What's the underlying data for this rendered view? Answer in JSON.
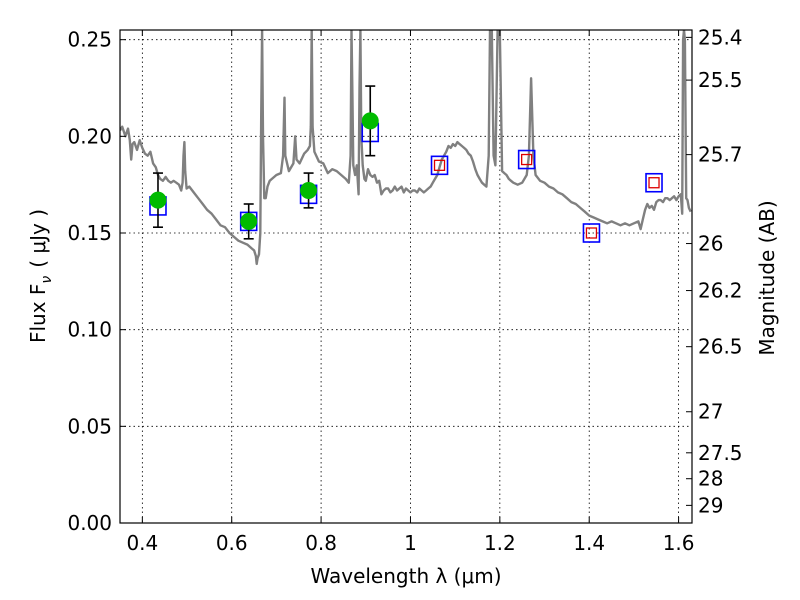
{
  "chart_data": {
    "type": "scatter",
    "xlabel": "Wavelength  λ (μm)",
    "ylabel": "Flux  F",
    "ylabel_sub": "ν",
    "ylabel_unit": "( μJy )",
    "y2label": "Magnitude (AB)",
    "xlim": [
      0.35,
      1.63
    ],
    "ylim": [
      0.0,
      0.255
    ],
    "grid": true,
    "x_ticks": [
      {
        "value": 0.4,
        "label": "0.4"
      },
      {
        "value": 0.6,
        "label": "0.6"
      },
      {
        "value": 0.8,
        "label": "0.8"
      },
      {
        "value": 1.0,
        "label": "1"
      },
      {
        "value": 1.2,
        "label": "1.2"
      },
      {
        "value": 1.4,
        "label": "1.4"
      },
      {
        "value": 1.6,
        "label": "1.6"
      }
    ],
    "y_ticks": [
      {
        "value": 0.0,
        "label": "0.00"
      },
      {
        "value": 0.05,
        "label": "0.05"
      },
      {
        "value": 0.1,
        "label": "0.10"
      },
      {
        "value": 0.15,
        "label": "0.15"
      },
      {
        "value": 0.2,
        "label": "0.20"
      },
      {
        "value": 0.25,
        "label": "0.25"
      }
    ],
    "mag_ticks": [
      "25.4",
      "25.5",
      "25.7",
      "26",
      "26.2",
      "26.5",
      "27",
      "27.5",
      "28",
      "29"
    ],
    "model_spectrum": {
      "color": "#808080",
      "points": [
        [
          0.35,
          0.203
        ],
        [
          0.355,
          0.205
        ],
        [
          0.362,
          0.2
        ],
        [
          0.368,
          0.204
        ],
        [
          0.372,
          0.198
        ],
        [
          0.375,
          0.188
        ],
        [
          0.378,
          0.196
        ],
        [
          0.382,
          0.197
        ],
        [
          0.388,
          0.193
        ],
        [
          0.394,
          0.198
        ],
        [
          0.4,
          0.194
        ],
        [
          0.406,
          0.191
        ],
        [
          0.412,
          0.19
        ],
        [
          0.418,
          0.192
        ],
        [
          0.424,
          0.186
        ],
        [
          0.43,
          0.184
        ],
        [
          0.435,
          0.18
        ],
        [
          0.44,
          0.178
        ],
        [
          0.446,
          0.177
        ],
        [
          0.452,
          0.179
        ],
        [
          0.458,
          0.177
        ],
        [
          0.464,
          0.176
        ],
        [
          0.47,
          0.177
        ],
        [
          0.476,
          0.176
        ],
        [
          0.482,
          0.175
        ],
        [
          0.487,
          0.172
        ],
        [
          0.49,
          0.176
        ],
        [
          0.492,
          0.19
        ],
        [
          0.494,
          0.197
        ],
        [
          0.496,
          0.182
        ],
        [
          0.499,
          0.173
        ],
        [
          0.505,
          0.174
        ],
        [
          0.515,
          0.171
        ],
        [
          0.525,
          0.168
        ],
        [
          0.535,
          0.165
        ],
        [
          0.545,
          0.162
        ],
        [
          0.555,
          0.16
        ],
        [
          0.565,
          0.157
        ],
        [
          0.575,
          0.154
        ],
        [
          0.585,
          0.153
        ],
        [
          0.595,
          0.15
        ],
        [
          0.605,
          0.148
        ],
        [
          0.615,
          0.146
        ],
        [
          0.625,
          0.145
        ],
        [
          0.635,
          0.144
        ],
        [
          0.645,
          0.142
        ],
        [
          0.65,
          0.141
        ],
        [
          0.654,
          0.138
        ],
        [
          0.656,
          0.134
        ],
        [
          0.658,
          0.137
        ],
        [
          0.661,
          0.139
        ],
        [
          0.664,
          0.15
        ],
        [
          0.666,
          0.21
        ],
        [
          0.668,
          0.255
        ],
        [
          0.67,
          0.2
        ],
        [
          0.673,
          0.168
        ],
        [
          0.676,
          0.168
        ],
        [
          0.68,
          0.174
        ],
        [
          0.685,
          0.177
        ],
        [
          0.69,
          0.178
        ],
        [
          0.7,
          0.18
        ],
        [
          0.71,
          0.181
        ],
        [
          0.715,
          0.19
        ],
        [
          0.718,
          0.22
        ],
        [
          0.72,
          0.19
        ],
        [
          0.728,
          0.182
        ],
        [
          0.738,
          0.186
        ],
        [
          0.742,
          0.2
        ],
        [
          0.745,
          0.188
        ],
        [
          0.752,
          0.186
        ],
        [
          0.762,
          0.191
        ],
        [
          0.77,
          0.193
        ],
        [
          0.775,
          0.195
        ],
        [
          0.777,
          0.205
        ],
        [
          0.779,
          0.255
        ],
        [
          0.781,
          0.205
        ],
        [
          0.785,
          0.192
        ],
        [
          0.795,
          0.187
        ],
        [
          0.805,
          0.186
        ],
        [
          0.815,
          0.181
        ],
        [
          0.825,
          0.183
        ],
        [
          0.835,
          0.182
        ],
        [
          0.845,
          0.18
        ],
        [
          0.855,
          0.178
        ],
        [
          0.862,
          0.176
        ],
        [
          0.866,
          0.19
        ],
        [
          0.868,
          0.255
        ],
        [
          0.87,
          0.222
        ],
        [
          0.872,
          0.185
        ],
        [
          0.876,
          0.18
        ],
        [
          0.88,
          0.185
        ],
        [
          0.884,
          0.17
        ],
        [
          0.886,
          0.225
        ],
        [
          0.888,
          0.255
        ],
        [
          0.89,
          0.2
        ],
        [
          0.893,
          0.185
        ],
        [
          0.897,
          0.178
        ],
        [
          0.9,
          0.177
        ],
        [
          0.905,
          0.183
        ],
        [
          0.91,
          0.18
        ],
        [
          0.915,
          0.179
        ],
        [
          0.92,
          0.18
        ],
        [
          0.925,
          0.176
        ],
        [
          0.93,
          0.177
        ],
        [
          0.935,
          0.17
        ],
        [
          0.94,
          0.172
        ],
        [
          0.945,
          0.173
        ],
        [
          0.95,
          0.173
        ],
        [
          0.955,
          0.171
        ],
        [
          0.96,
          0.172
        ],
        [
          0.965,
          0.174
        ],
        [
          0.97,
          0.172
        ],
        [
          0.975,
          0.173
        ],
        [
          0.98,
          0.174
        ],
        [
          0.985,
          0.171
        ],
        [
          0.99,
          0.173
        ],
        [
          0.995,
          0.172
        ],
        [
          1.0,
          0.171
        ],
        [
          1.005,
          0.172
        ],
        [
          1.01,
          0.172
        ],
        [
          1.015,
          0.171
        ],
        [
          1.02,
          0.173
        ],
        [
          1.025,
          0.172
        ],
        [
          1.03,
          0.171
        ],
        [
          1.035,
          0.172
        ],
        [
          1.04,
          0.173
        ],
        [
          1.045,
          0.174
        ],
        [
          1.05,
          0.176
        ],
        [
          1.055,
          0.178
        ],
        [
          1.06,
          0.18
        ],
        [
          1.065,
          0.184
        ],
        [
          1.07,
          0.188
        ],
        [
          1.075,
          0.19
        ],
        [
          1.08,
          0.192
        ],
        [
          1.085,
          0.195
        ],
        [
          1.09,
          0.194
        ],
        [
          1.095,
          0.196
        ],
        [
          1.1,
          0.195
        ],
        [
          1.105,
          0.197
        ],
        [
          1.11,
          0.196
        ],
        [
          1.115,
          0.195
        ],
        [
          1.12,
          0.194
        ],
        [
          1.125,
          0.193
        ],
        [
          1.13,
          0.191
        ],
        [
          1.135,
          0.19
        ],
        [
          1.14,
          0.187
        ],
        [
          1.145,
          0.183
        ],
        [
          1.15,
          0.18
        ],
        [
          1.155,
          0.178
        ],
        [
          1.16,
          0.176
        ],
        [
          1.165,
          0.175
        ],
        [
          1.17,
          0.174
        ],
        [
          1.175,
          0.19
        ],
        [
          1.178,
          0.255
        ],
        [
          1.182,
          0.255
        ],
        [
          1.186,
          0.19
        ],
        [
          1.19,
          0.185
        ],
        [
          1.195,
          0.255
        ],
        [
          1.2,
          0.255
        ],
        [
          1.205,
          0.182
        ],
        [
          1.21,
          0.181
        ],
        [
          1.215,
          0.18
        ],
        [
          1.22,
          0.178
        ],
        [
          1.225,
          0.177
        ],
        [
          1.23,
          0.176
        ],
        [
          1.24,
          0.175
        ],
        [
          1.25,
          0.176
        ],
        [
          1.26,
          0.18
        ],
        [
          1.265,
          0.19
        ],
        [
          1.27,
          0.23
        ],
        [
          1.275,
          0.19
        ],
        [
          1.28,
          0.18
        ],
        [
          1.29,
          0.177
        ],
        [
          1.3,
          0.176
        ],
        [
          1.31,
          0.174
        ],
        [
          1.32,
          0.173
        ],
        [
          1.33,
          0.171
        ],
        [
          1.34,
          0.17
        ],
        [
          1.35,
          0.168
        ],
        [
          1.36,
          0.166
        ],
        [
          1.37,
          0.165
        ],
        [
          1.38,
          0.163
        ],
        [
          1.39,
          0.161
        ],
        [
          1.4,
          0.159
        ],
        [
          1.41,
          0.158
        ],
        [
          1.42,
          0.157
        ],
        [
          1.43,
          0.156
        ],
        [
          1.44,
          0.155
        ],
        [
          1.45,
          0.156
        ],
        [
          1.46,
          0.155
        ],
        [
          1.47,
          0.154
        ],
        [
          1.48,
          0.155
        ],
        [
          1.49,
          0.154
        ],
        [
          1.5,
          0.155
        ],
        [
          1.51,
          0.156
        ],
        [
          1.515,
          0.152
        ],
        [
          1.52,
          0.157
        ],
        [
          1.525,
          0.162
        ],
        [
          1.53,
          0.165
        ],
        [
          1.535,
          0.163
        ],
        [
          1.54,
          0.164
        ],
        [
          1.545,
          0.162
        ],
        [
          1.55,
          0.166
        ],
        [
          1.555,
          0.167
        ],
        [
          1.56,
          0.167
        ],
        [
          1.565,
          0.166
        ],
        [
          1.57,
          0.168
        ],
        [
          1.575,
          0.168
        ],
        [
          1.58,
          0.167
        ],
        [
          1.585,
          0.168
        ],
        [
          1.59,
          0.169
        ],
        [
          1.595,
          0.167
        ],
        [
          1.6,
          0.169
        ],
        [
          1.605,
          0.17
        ],
        [
          1.608,
          0.16
        ],
        [
          1.61,
          0.25
        ],
        [
          1.612,
          0.255
        ],
        [
          1.614,
          0.25
        ],
        [
          1.617,
          0.168
        ],
        [
          1.62,
          0.167
        ],
        [
          1.623,
          0.163
        ],
        [
          1.627,
          0.161
        ]
      ]
    },
    "model_photometry": {
      "color": "#0000ff",
      "points": [
        [
          0.435,
          0.164
        ],
        [
          0.638,
          0.156
        ],
        [
          0.772,
          0.17
        ],
        [
          0.91,
          0.202
        ],
        [
          1.065,
          0.185
        ],
        [
          1.26,
          0.188
        ],
        [
          1.405,
          0.15
        ],
        [
          1.545,
          0.176
        ]
      ]
    },
    "observed_photometry": {
      "color": "#00bb00",
      "points": [
        {
          "x": 0.435,
          "y": 0.167,
          "err": 0.014
        },
        {
          "x": 0.638,
          "y": 0.156,
          "err": 0.009
        },
        {
          "x": 0.772,
          "y": 0.172,
          "err": 0.009
        },
        {
          "x": 0.91,
          "y": 0.208,
          "err": 0.018
        }
      ]
    },
    "upper_limits": {
      "color": "#dd0000",
      "points": [
        [
          1.065,
          0.185
        ],
        [
          1.26,
          0.188
        ],
        [
          1.405,
          0.15
        ],
        [
          1.545,
          0.176
        ]
      ]
    }
  }
}
